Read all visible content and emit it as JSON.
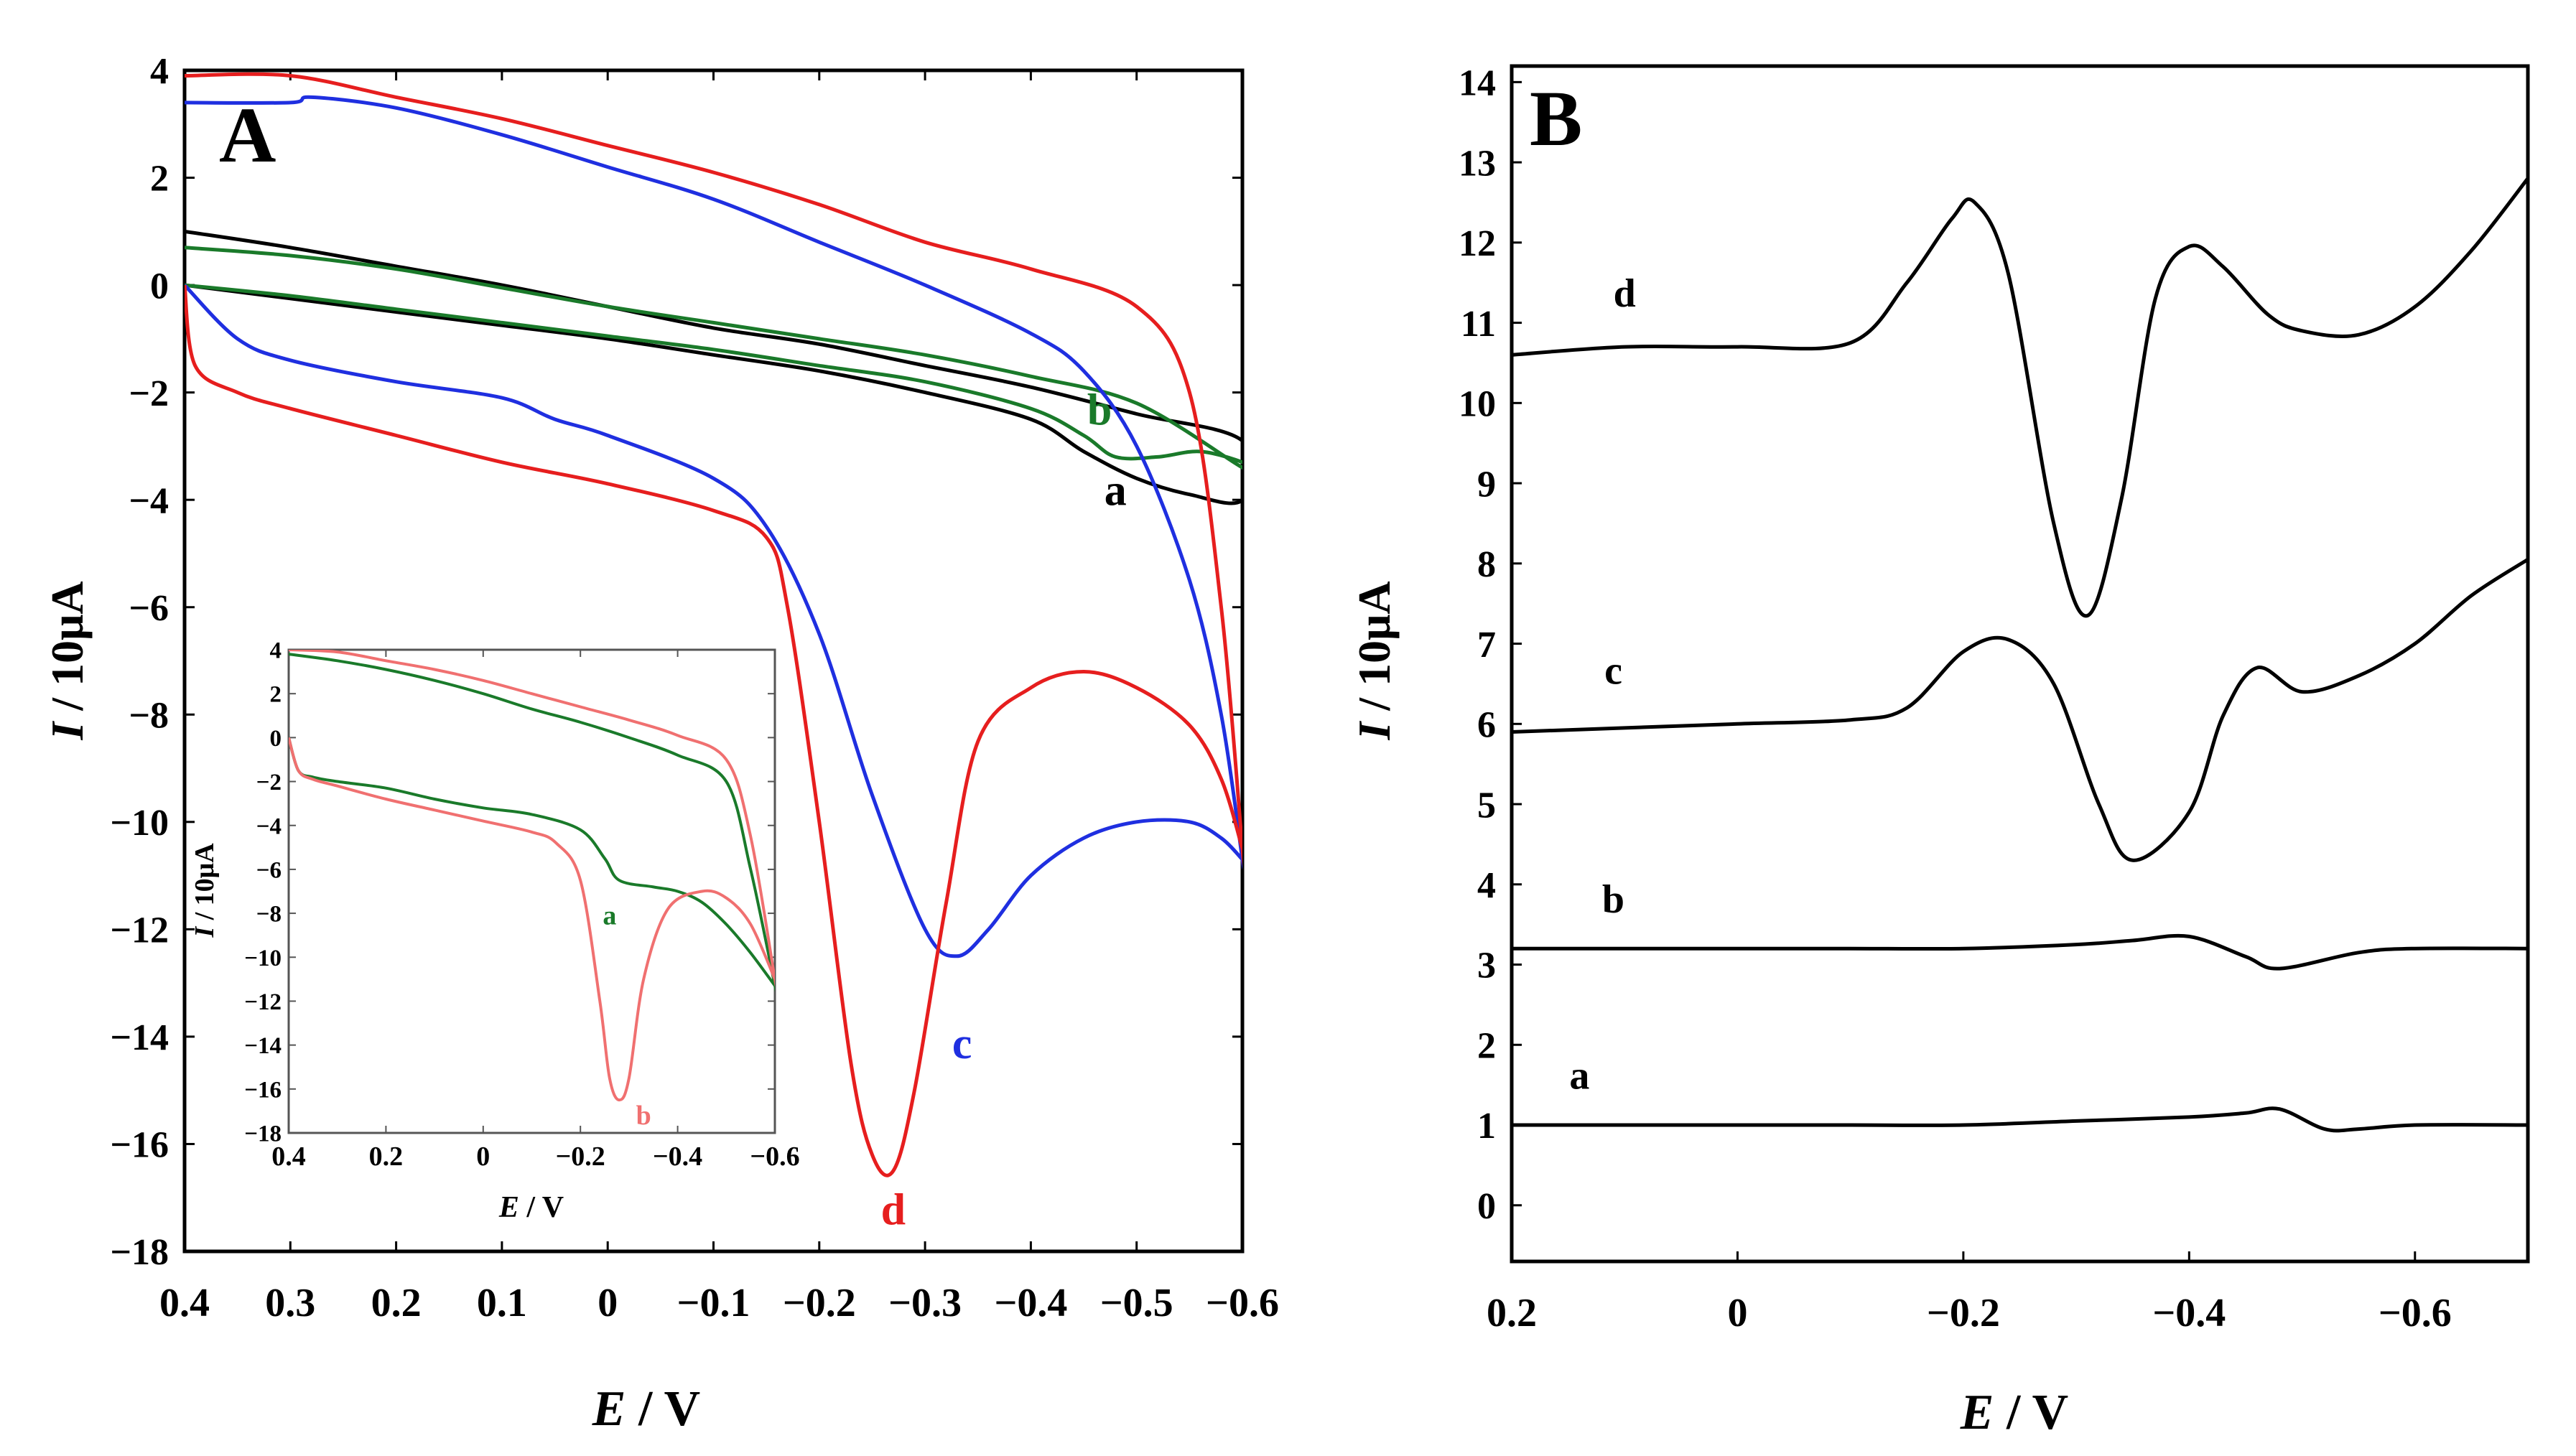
{
  "chart_data": [
    {
      "panel_label": "A",
      "type": "line",
      "xlabel_var": "E",
      "xlabel_unit": " / V",
      "ylabel_var": "I",
      "ylabel_unit": " / 10μA",
      "xlim": [
        0.4,
        -0.6
      ],
      "ylim": [
        -18,
        4
      ],
      "x_ticks": [
        "0.4",
        "0.3",
        "0.2",
        "0.1",
        "0",
        "−0.1",
        "−0.2",
        "−0.3",
        "−0.4",
        "−0.5",
        "−0.6"
      ],
      "x_tick_values": [
        0.4,
        0.3,
        0.2,
        0.1,
        0,
        -0.1,
        -0.2,
        -0.3,
        -0.4,
        -0.5,
        -0.6
      ],
      "y_ticks": [
        "4",
        "2",
        "0",
        "−2",
        "−4",
        "−6",
        "−8",
        "−10",
        "−12",
        "−14",
        "−16",
        "−18"
      ],
      "y_tick_values": [
        4,
        2,
        0,
        -2,
        -4,
        -6,
        -8,
        -10,
        -12,
        -14,
        -16,
        -18
      ],
      "series": [
        {
          "name": "a",
          "color": "#000000",
          "label": "a",
          "label_at": [
            -0.48,
            -4.1
          ],
          "x": [
            0.4,
            0.3,
            0.2,
            0.1,
            0.0,
            -0.1,
            -0.2,
            -0.3,
            -0.4,
            -0.45,
            -0.5,
            -0.55,
            -0.6,
            -0.6,
            -0.5,
            -0.4,
            -0.3,
            -0.2,
            -0.1,
            0.0,
            0.1,
            0.2,
            0.3,
            0.4
          ],
          "y": [
            0.0,
            -0.25,
            -0.5,
            -0.75,
            -1.0,
            -1.3,
            -1.6,
            -2.0,
            -2.5,
            -3.1,
            -3.6,
            -3.9,
            -4.0,
            -2.9,
            -2.4,
            -1.9,
            -1.5,
            -1.1,
            -0.8,
            -0.4,
            0.0,
            0.35,
            0.7,
            1.0
          ]
        },
        {
          "name": "b",
          "color": "#1a7a2a",
          "label": "b",
          "label_at": [
            -0.465,
            -2.6
          ],
          "x": [
            0.4,
            0.3,
            0.2,
            0.1,
            0.0,
            -0.1,
            -0.2,
            -0.3,
            -0.4,
            -0.45,
            -0.48,
            -0.52,
            -0.56,
            -0.6,
            -0.6,
            -0.5,
            -0.4,
            -0.3,
            -0.2,
            -0.1,
            0.0,
            0.1,
            0.2,
            0.3,
            0.4
          ],
          "y": [
            0.0,
            -0.2,
            -0.45,
            -0.7,
            -0.95,
            -1.2,
            -1.5,
            -1.8,
            -2.3,
            -2.8,
            -3.2,
            -3.2,
            -3.1,
            -3.3,
            -3.4,
            -2.2,
            -1.7,
            -1.3,
            -1.0,
            -0.7,
            -0.4,
            -0.05,
            0.3,
            0.55,
            0.7
          ]
        },
        {
          "name": "c",
          "color": "#1f2fe0",
          "label": "c",
          "label_at": [
            -0.335,
            -14.4
          ],
          "x": [
            0.4,
            0.35,
            0.3,
            0.2,
            0.1,
            0.05,
            0.0,
            -0.1,
            -0.15,
            -0.2,
            -0.25,
            -0.3,
            -0.33,
            -0.36,
            -0.4,
            -0.45,
            -0.5,
            -0.55,
            -0.58,
            -0.6,
            -0.6,
            -0.58,
            -0.55,
            -0.5,
            -0.45,
            -0.4,
            -0.3,
            -0.2,
            -0.1,
            0.0,
            0.1,
            0.2,
            0.28,
            0.3,
            0.4
          ],
          "y": [
            0.0,
            -1.0,
            -1.4,
            -1.8,
            -2.1,
            -2.5,
            -2.8,
            -3.6,
            -4.5,
            -6.5,
            -9.5,
            -12.0,
            -12.5,
            -12.0,
            -11.0,
            -10.3,
            -10.0,
            -10.0,
            -10.3,
            -10.7,
            -10.7,
            -8.0,
            -5.5,
            -3.0,
            -1.6,
            -0.9,
            0.0,
            0.8,
            1.6,
            2.2,
            2.8,
            3.3,
            3.5,
            3.4,
            3.4
          ]
        },
        {
          "name": "d",
          "color": "#e61e1e",
          "label": "d",
          "label_at": [
            -0.27,
            -17.5
          ],
          "x": [
            0.4,
            0.39,
            0.35,
            0.3,
            0.2,
            0.1,
            0.0,
            -0.1,
            -0.15,
            -0.17,
            -0.2,
            -0.23,
            -0.25,
            -0.27,
            -0.29,
            -0.32,
            -0.35,
            -0.4,
            -0.45,
            -0.5,
            -0.55,
            -0.58,
            -0.6,
            -0.6,
            -0.58,
            -0.55,
            -0.5,
            -0.4,
            -0.3,
            -0.2,
            -0.1,
            0.0,
            0.1,
            0.2,
            0.3,
            0.4
          ],
          "y": [
            0.0,
            -1.5,
            -2.0,
            -2.3,
            -2.8,
            -3.3,
            -3.7,
            -4.2,
            -4.7,
            -6.0,
            -10.0,
            -14.5,
            -16.2,
            -16.5,
            -15.0,
            -11.5,
            -8.5,
            -7.5,
            -7.2,
            -7.5,
            -8.2,
            -9.2,
            -10.5,
            -10.5,
            -6.0,
            -2.0,
            -0.4,
            0.3,
            0.8,
            1.5,
            2.1,
            2.6,
            3.1,
            3.5,
            3.9,
            3.9
          ]
        }
      ],
      "inset": {
        "type": "line",
        "xlabel_var": "E",
        "xlabel_unit": " / V",
        "ylabel_var": "I",
        "ylabel_unit": " / 10μA",
        "xlim": [
          0.4,
          -0.6
        ],
        "ylim": [
          -18,
          4
        ],
        "x_ticks": [
          "0.4",
          "0.2",
          "0",
          "−0.2",
          "−0.4",
          "−0.6"
        ],
        "x_tick_values": [
          0.4,
          0.2,
          0,
          -0.2,
          -0.4,
          -0.6
        ],
        "y_ticks": [
          "4",
          "2",
          "0",
          "−2",
          "−4",
          "−6",
          "−8",
          "−10",
          "−12",
          "−14",
          "−16",
          "−18"
        ],
        "y_tick_values": [
          4,
          2,
          0,
          -2,
          -4,
          -6,
          -8,
          -10,
          -12,
          -14,
          -16,
          -18
        ],
        "series": [
          {
            "name": "a",
            "color": "#1a7a2a",
            "label": "a",
            "label_at": [
              -0.26,
              -8.5
            ],
            "x": [
              0.4,
              0.38,
              0.35,
              0.3,
              0.2,
              0.1,
              0.0,
              -0.1,
              -0.2,
              -0.25,
              -0.28,
              -0.35,
              -0.4,
              -0.45,
              -0.5,
              -0.55,
              -0.6,
              -0.6,
              -0.55,
              -0.5,
              -0.4,
              -0.3,
              -0.2,
              -0.1,
              0.0,
              0.1,
              0.2,
              0.3,
              0.4
            ],
            "y": [
              0.0,
              -1.5,
              -1.8,
              -2.0,
              -2.3,
              -2.8,
              -3.2,
              -3.5,
              -4.2,
              -5.5,
              -6.5,
              -6.8,
              -7.0,
              -7.5,
              -8.5,
              -9.8,
              -11.3,
              -11.3,
              -6.0,
              -2.0,
              -0.8,
              0.0,
              0.7,
              1.3,
              2.0,
              2.6,
              3.1,
              3.5,
              3.8
            ]
          },
          {
            "name": "b",
            "color": "#f07070",
            "label": "b",
            "label_at": [
              -0.33,
              -17.6
            ],
            "x": [
              0.4,
              0.38,
              0.35,
              0.3,
              0.2,
              0.1,
              0.0,
              -0.1,
              -0.15,
              -0.2,
              -0.24,
              -0.26,
              -0.28,
              -0.3,
              -0.33,
              -0.38,
              -0.45,
              -0.5,
              -0.55,
              -0.6,
              -0.6,
              -0.55,
              -0.5,
              -0.4,
              -0.3,
              -0.2,
              -0.1,
              0.0,
              0.1,
              0.2,
              0.3,
              0.4
            ],
            "y": [
              0.0,
              -1.5,
              -1.9,
              -2.2,
              -2.8,
              -3.3,
              -3.8,
              -4.3,
              -4.8,
              -6.5,
              -12.0,
              -15.5,
              -16.5,
              -15.5,
              -11.0,
              -7.8,
              -7.0,
              -7.3,
              -8.5,
              -11.0,
              -11.0,
              -4.5,
              -1.0,
              0.1,
              0.8,
              1.4,
              2.0,
              2.6,
              3.1,
              3.5,
              3.9,
              4.0
            ]
          }
        ]
      }
    },
    {
      "panel_label": "B",
      "type": "line",
      "xlabel_var": "E",
      "xlabel_unit": " / V",
      "ylabel_var": "I",
      "ylabel_unit": " / 10μA",
      "xlim": [
        0.2,
        -0.7
      ],
      "ylim": [
        -0.7,
        14.2
      ],
      "x_ticks": [
        "0.2",
        "0",
        "−0.2",
        "−0.4",
        "−0.6"
      ],
      "x_tick_values": [
        0.2,
        0,
        -0.2,
        -0.4,
        -0.6
      ],
      "y_ticks": [
        "0",
        "1",
        "2",
        "3",
        "4",
        "5",
        "6",
        "7",
        "8",
        "9",
        "10",
        "11",
        "12",
        "13",
        "14"
      ],
      "y_tick_values": [
        0,
        1,
        2,
        3,
        4,
        5,
        6,
        7,
        8,
        9,
        10,
        11,
        12,
        13,
        14
      ],
      "series": [
        {
          "name": "a",
          "color": "#000000",
          "label": "a",
          "label_at": [
            0.14,
            1.45
          ],
          "x": [
            0.2,
            0.1,
            0.0,
            -0.1,
            -0.2,
            -0.3,
            -0.4,
            -0.45,
            -0.48,
            -0.52,
            -0.55,
            -0.6,
            -0.7
          ],
          "y": [
            1.0,
            1.0,
            1.0,
            1.0,
            1.0,
            1.05,
            1.1,
            1.15,
            1.2,
            0.95,
            0.95,
            1.0,
            1.0
          ]
        },
        {
          "name": "b",
          "color": "#000000",
          "label": "b",
          "label_at": [
            0.11,
            3.65
          ],
          "x": [
            0.2,
            0.1,
            0.0,
            -0.1,
            -0.2,
            -0.3,
            -0.35,
            -0.4,
            -0.45,
            -0.48,
            -0.55,
            -0.6,
            -0.7
          ],
          "y": [
            3.2,
            3.2,
            3.2,
            3.2,
            3.2,
            3.25,
            3.3,
            3.35,
            3.1,
            2.95,
            3.15,
            3.2,
            3.2
          ]
        },
        {
          "name": "c",
          "color": "#000000",
          "label": "c",
          "label_at": [
            0.11,
            6.5
          ],
          "x": [
            0.2,
            0.1,
            0.0,
            -0.1,
            -0.15,
            -0.2,
            -0.24,
            -0.28,
            -0.32,
            -0.35,
            -0.4,
            -0.43,
            -0.46,
            -0.5,
            -0.55,
            -0.6,
            -0.65,
            -0.7
          ],
          "y": [
            5.9,
            5.95,
            6.0,
            6.05,
            6.2,
            6.9,
            7.05,
            6.5,
            5.0,
            4.3,
            4.9,
            6.1,
            6.7,
            6.4,
            6.6,
            7.0,
            7.6,
            8.05
          ]
        },
        {
          "name": "d",
          "color": "#000000",
          "label": "d",
          "label_at": [
            0.1,
            11.2
          ],
          "x": [
            0.2,
            0.1,
            0.0,
            -0.1,
            -0.15,
            -0.19,
            -0.21,
            -0.24,
            -0.28,
            -0.31,
            -0.34,
            -0.37,
            -0.4,
            -0.43,
            -0.47,
            -0.5,
            -0.55,
            -0.6,
            -0.65,
            -0.7
          ],
          "y": [
            10.6,
            10.7,
            10.7,
            10.75,
            11.5,
            12.3,
            12.5,
            11.6,
            8.5,
            7.35,
            8.8,
            11.3,
            11.95,
            11.7,
            11.1,
            10.9,
            10.85,
            11.2,
            11.9,
            12.8
          ]
        }
      ]
    }
  ]
}
